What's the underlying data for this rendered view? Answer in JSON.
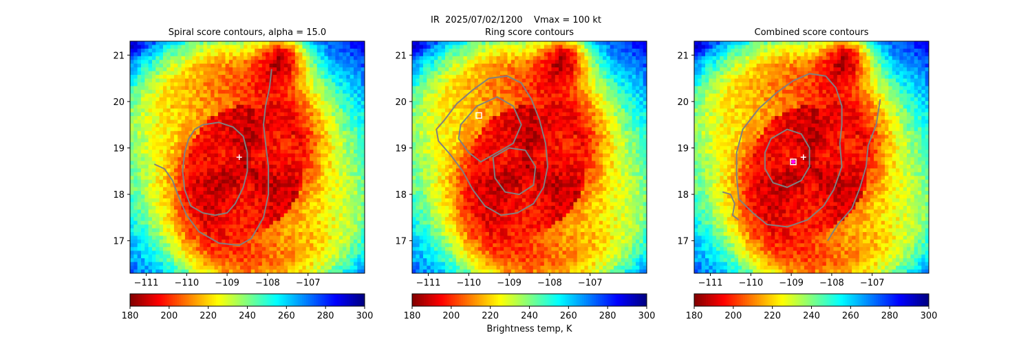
{
  "chart_data": {
    "type": "heatmap",
    "suptitle": "IR  2025/07/02/1200    Vmax = 100 kt",
    "suptitle_line1": "IR  2025/07/02/1200    Vmax = 100 kt",
    "colorbar": {
      "label": "Brightness temp, K",
      "colormap": "jet_r",
      "range": [
        180,
        300
      ],
      "ticks": [
        "180",
        "200",
        "220",
        "240",
        "260",
        "280",
        "300"
      ],
      "tick_values": [
        180,
        200,
        220,
        240,
        260,
        280,
        300
      ]
    },
    "xlim": [
      -111.4,
      -105.6
    ],
    "ylim": [
      16.3,
      21.3
    ],
    "xticks": [
      -111,
      -110,
      -109,
      -108,
      -107
    ],
    "xtick_labels": [
      "−111",
      "−110",
      "−109",
      "−108",
      "−107"
    ],
    "yticks": [
      17,
      18,
      19,
      20,
      21
    ],
    "ytick_labels": [
      "17",
      "18",
      "19",
      "20",
      "21"
    ],
    "storm": {
      "center_lon": -108.55,
      "center_lat": 18.55,
      "core_temp_K": 190
    },
    "panels": [
      {
        "title": "Spiral score contours, alpha = 15.0",
        "center_marker": {
          "type": "plus",
          "color": "#ffffff",
          "lon": -108.7,
          "lat": 18.8
        },
        "contours": [
          {
            "name": "spiral-inner",
            "points": [
              [
                -109.6,
                19.5
              ],
              [
                -109.2,
                19.55
              ],
              [
                -108.85,
                19.45
              ],
              [
                -108.6,
                19.25
              ],
              [
                -108.5,
                18.9
              ],
              [
                -108.5,
                18.5
              ],
              [
                -108.6,
                18.15
              ],
              [
                -108.8,
                17.8
              ],
              [
                -109.0,
                17.6
              ],
              [
                -109.3,
                17.55
              ],
              [
                -109.6,
                17.6
              ],
              [
                -109.9,
                17.75
              ],
              [
                -110.05,
                18.1
              ],
              [
                -110.1,
                18.5
              ],
              [
                -110.05,
                18.9
              ],
              [
                -109.95,
                19.2
              ],
              [
                -109.8,
                19.4
              ]
            ],
            "closed": true
          },
          {
            "name": "spiral-arm",
            "points": [
              [
                -110.8,
                18.65
              ],
              [
                -110.55,
                18.55
              ],
              [
                -110.35,
                18.3
              ],
              [
                -110.2,
                17.95
              ],
              [
                -110.0,
                17.55
              ],
              [
                -109.7,
                17.2
              ],
              [
                -109.2,
                16.95
              ],
              [
                -108.7,
                16.9
              ],
              [
                -108.4,
                17.05
              ],
              [
                -108.1,
                17.5
              ],
              [
                -107.98,
                18.0
              ],
              [
                -107.98,
                18.6
              ],
              [
                -108.05,
                19.1
              ],
              [
                -108.1,
                19.5
              ],
              [
                -108.05,
                19.9
              ],
              [
                -107.95,
                20.3
              ],
              [
                -107.9,
                20.7
              ]
            ],
            "closed": false
          }
        ],
        "colorbar_ticks": [
          "180",
          "200",
          "220",
          "240",
          "260",
          "280",
          "300"
        ]
      },
      {
        "title": "Ring score contours",
        "center_marker": {
          "type": "square",
          "color": "#ffffff",
          "lon": -109.75,
          "lat": 19.7
        },
        "contours": [
          {
            "name": "ring-outer",
            "points": [
              [
                -110.6,
                19.6
              ],
              [
                -110.3,
                19.95
              ],
              [
                -109.9,
                20.25
              ],
              [
                -109.5,
                20.5
              ],
              [
                -109.05,
                20.55
              ],
              [
                -108.7,
                20.4
              ],
              [
                -108.45,
                20.05
              ],
              [
                -108.25,
                19.6
              ],
              [
                -108.1,
                19.1
              ],
              [
                -108.05,
                18.6
              ],
              [
                -108.15,
                18.15
              ],
              [
                -108.4,
                17.8
              ],
              [
                -108.8,
                17.6
              ],
              [
                -109.2,
                17.55
              ],
              [
                -109.6,
                17.75
              ],
              [
                -109.9,
                18.1
              ],
              [
                -110.15,
                18.5
              ],
              [
                -110.45,
                18.85
              ],
              [
                -110.75,
                19.15
              ],
              [
                -110.8,
                19.4
              ]
            ],
            "closed": true
          },
          {
            "name": "ring-inner",
            "points": [
              [
                -110.2,
                19.5
              ],
              [
                -109.8,
                19.9
              ],
              [
                -109.3,
                20.1
              ],
              [
                -108.9,
                19.9
              ],
              [
                -108.7,
                19.5
              ],
              [
                -108.9,
                19.1
              ],
              [
                -109.3,
                18.9
              ],
              [
                -109.7,
                18.7
              ],
              [
                -110.0,
                18.9
              ],
              [
                -110.25,
                19.2
              ]
            ],
            "closed": true
          },
          {
            "name": "ring-core",
            "points": [
              [
                -109.4,
                18.8
              ],
              [
                -109.0,
                19.0
              ],
              [
                -108.6,
                18.95
              ],
              [
                -108.35,
                18.6
              ],
              [
                -108.4,
                18.2
              ],
              [
                -108.75,
                18.0
              ],
              [
                -109.1,
                18.05
              ],
              [
                -109.35,
                18.35
              ]
            ],
            "closed": true
          }
        ],
        "colorbar_ticks": [
          "180",
          "200",
          "220",
          "240",
          "260",
          "280",
          "300"
        ]
      },
      {
        "title": "Combined score contours",
        "center_marker": {
          "type": "plus",
          "color": "#ffffff",
          "lon": -108.7,
          "lat": 18.8
        },
        "best_marker": {
          "type": "circle-square",
          "color": "#ff00ff",
          "lon": -108.95,
          "lat": 18.7
        },
        "contours": [
          {
            "name": "combined-outer",
            "points": [
              [
                -110.3,
                17.9
              ],
              [
                -110.35,
                18.4
              ],
              [
                -110.35,
                18.9
              ],
              [
                -110.2,
                19.4
              ],
              [
                -109.8,
                19.85
              ],
              [
                -109.35,
                20.2
              ],
              [
                -108.95,
                20.45
              ],
              [
                -108.55,
                20.6
              ],
              [
                -108.15,
                20.55
              ],
              [
                -107.9,
                20.3
              ],
              [
                -107.75,
                19.9
              ],
              [
                -107.75,
                19.5
              ],
              [
                -107.8,
                19.1
              ],
              [
                -107.75,
                18.6
              ],
              [
                -107.95,
                18.1
              ],
              [
                -108.2,
                17.75
              ],
              [
                -108.6,
                17.45
              ],
              [
                -109.1,
                17.3
              ],
              [
                -109.6,
                17.35
              ],
              [
                -109.95,
                17.6
              ]
            ],
            "closed": true
          },
          {
            "name": "combined-inner",
            "points": [
              [
                -109.5,
                19.2
              ],
              [
                -109.1,
                19.4
              ],
              [
                -108.75,
                19.3
              ],
              [
                -108.55,
                19.0
              ],
              [
                -108.55,
                18.6
              ],
              [
                -108.75,
                18.3
              ],
              [
                -109.1,
                18.15
              ],
              [
                -109.45,
                18.25
              ],
              [
                -109.65,
                18.55
              ],
              [
                -109.65,
                18.9
              ]
            ],
            "closed": true
          },
          {
            "name": "combined-arm-west",
            "points": [
              [
                -110.7,
                18.05
              ],
              [
                -110.5,
                18.0
              ],
              [
                -110.4,
                17.8
              ],
              [
                -110.45,
                17.55
              ],
              [
                -110.3,
                17.45
              ]
            ],
            "closed": false
          },
          {
            "name": "combined-arm-east",
            "points": [
              [
                -106.8,
                20.05
              ],
              [
                -106.9,
                19.5
              ],
              [
                -107.1,
                19.05
              ],
              [
                -107.15,
                18.6
              ],
              [
                -107.3,
                18.15
              ],
              [
                -107.5,
                17.7
              ],
              [
                -107.85,
                17.35
              ],
              [
                -108.1,
                17.0
              ]
            ],
            "closed": false
          }
        ],
        "colorbar_ticks": [
          "180",
          "200",
          "220",
          "240",
          "260",
          "280",
          "300"
        ]
      }
    ]
  }
}
